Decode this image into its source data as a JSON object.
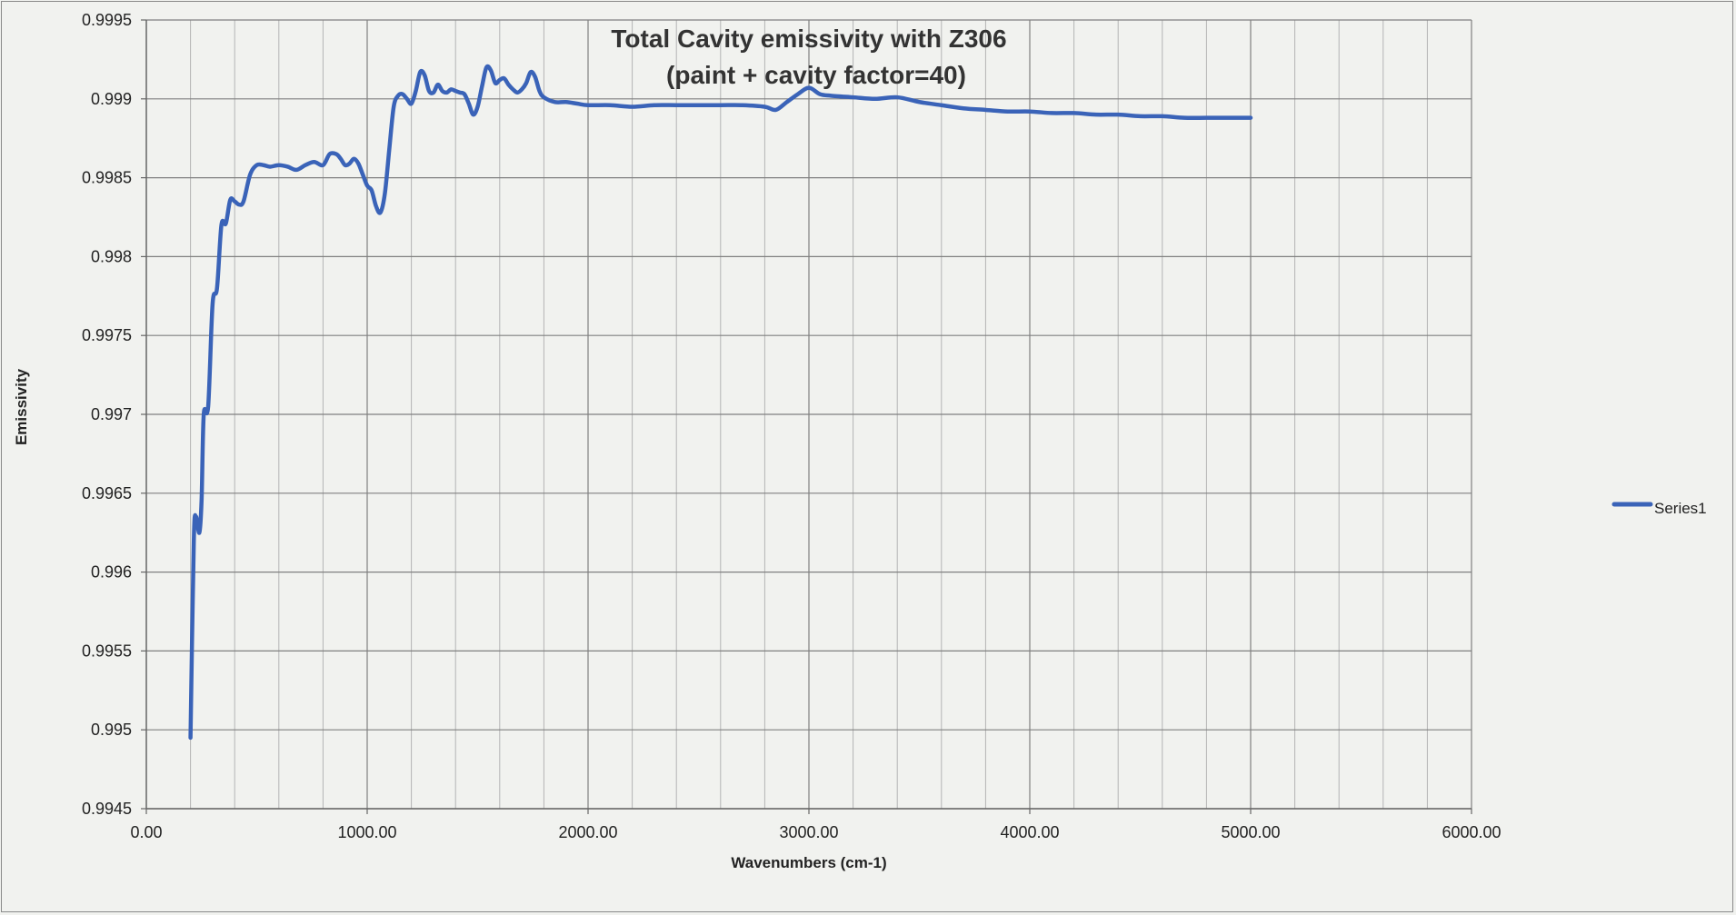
{
  "chart_data": {
    "type": "line",
    "title": [
      "Total Cavity emissivity with Z306",
      "(paint + cavity factor=40)"
    ],
    "xlabel": "Wavenumbers (cm-1)",
    "ylabel": "Emissivity",
    "xlim": [
      0,
      6000
    ],
    "ylim": [
      0.9945,
      0.9995
    ],
    "x_ticks": [
      0,
      1000,
      2000,
      3000,
      4000,
      5000,
      6000
    ],
    "x_tick_labels": [
      "0.00",
      "1000.00",
      "2000.00",
      "3000.00",
      "4000.00",
      "5000.00",
      "6000.00"
    ],
    "y_ticks": [
      0.9945,
      0.995,
      0.9955,
      0.996,
      0.9965,
      0.997,
      0.9975,
      0.998,
      0.9985,
      0.999,
      0.9995
    ],
    "y_tick_labels": [
      "0.9945",
      "0.995",
      "0.9955",
      "0.996",
      "0.9965",
      "0.997",
      "0.9975",
      "0.998",
      "0.9985",
      "0.999",
      "0.9995"
    ],
    "grid": true,
    "legend_position": "right",
    "series": [
      {
        "name": "Series1",
        "color": "#3a63b8",
        "x": [
          200,
          215,
          225,
          240,
          250,
          260,
          280,
          300,
          320,
          340,
          360,
          380,
          400,
          420,
          440,
          470,
          500,
          530,
          560,
          600,
          640,
          680,
          720,
          760,
          800,
          830,
          860,
          880,
          900,
          920,
          940,
          960,
          980,
          1000,
          1020,
          1040,
          1060,
          1080,
          1100,
          1120,
          1140,
          1160,
          1180,
          1200,
          1220,
          1240,
          1260,
          1280,
          1300,
          1320,
          1340,
          1360,
          1380,
          1400,
          1420,
          1440,
          1460,
          1480,
          1500,
          1520,
          1540,
          1560,
          1580,
          1600,
          1620,
          1640,
          1660,
          1680,
          1700,
          1720,
          1740,
          1760,
          1780,
          1800,
          1850,
          1900,
          1950,
          2000,
          2100,
          2200,
          2300,
          2400,
          2500,
          2600,
          2700,
          2800,
          2850,
          2900,
          2950,
          3000,
          3050,
          3100,
          3200,
          3300,
          3400,
          3500,
          3600,
          3700,
          3800,
          3900,
          4000,
          4100,
          4200,
          4300,
          4400,
          4500,
          4600,
          4700,
          4800,
          4900,
          5000
        ],
        "y": [
          0.99495,
          0.9962,
          0.99635,
          0.99625,
          0.99645,
          0.997,
          0.99705,
          0.9977,
          0.9978,
          0.9982,
          0.99821,
          0.99836,
          0.99835,
          0.99833,
          0.99835,
          0.99852,
          0.99858,
          0.99858,
          0.99857,
          0.99858,
          0.99857,
          0.99855,
          0.99858,
          0.9986,
          0.99858,
          0.99865,
          0.99865,
          0.99862,
          0.99858,
          0.99859,
          0.99862,
          0.99859,
          0.99852,
          0.99845,
          0.99842,
          0.99832,
          0.99828,
          0.9984,
          0.99868,
          0.99895,
          0.99902,
          0.99903,
          0.999,
          0.99897,
          0.99905,
          0.99917,
          0.99915,
          0.99905,
          0.99904,
          0.99909,
          0.99905,
          0.99904,
          0.99906,
          0.99905,
          0.99904,
          0.99903,
          0.99897,
          0.9989,
          0.99895,
          0.99908,
          0.9992,
          0.99918,
          0.9991,
          0.99912,
          0.99913,
          0.99909,
          0.99906,
          0.99904,
          0.99906,
          0.9991,
          0.99917,
          0.99914,
          0.99905,
          0.99901,
          0.99898,
          0.99898,
          0.99897,
          0.99896,
          0.99896,
          0.99895,
          0.99896,
          0.99896,
          0.99896,
          0.99896,
          0.99896,
          0.99895,
          0.99893,
          0.99898,
          0.99903,
          0.99907,
          0.99903,
          0.99902,
          0.99901,
          0.999,
          0.99901,
          0.99898,
          0.99896,
          0.99894,
          0.99893,
          0.99892,
          0.99892,
          0.99891,
          0.99891,
          0.9989,
          0.9989,
          0.99889,
          0.99889,
          0.99888,
          0.99888,
          0.99888,
          0.99888
        ]
      }
    ]
  }
}
